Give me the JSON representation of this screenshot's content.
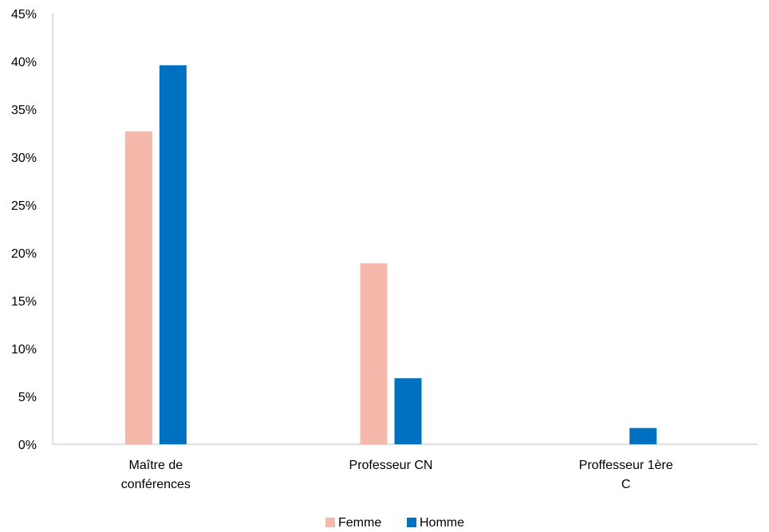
{
  "chart_data": {
    "type": "bar",
    "categories": [
      [
        "Maître de",
        "conférences"
      ],
      [
        "Professeur CN"
      ],
      [
        "Proffesseur 1ère",
        "C"
      ]
    ],
    "series": [
      {
        "name": "Femme",
        "color": "#F4B9AA",
        "values": [
          0.327,
          0.189,
          0
        ]
      },
      {
        "name": "Homme",
        "color": "#0070C0",
        "values": [
          0.396,
          0.069,
          0.017
        ]
      }
    ],
    "ylim": [
      0,
      0.45
    ],
    "yticks": [
      0,
      0.05,
      0.1,
      0.15,
      0.2,
      0.25,
      0.3,
      0.35,
      0.4,
      0.45
    ],
    "ytick_labels": [
      "0%",
      "5%",
      "10%",
      "15%",
      "20%",
      "25%",
      "30%",
      "35%",
      "40%",
      "45%"
    ],
    "grid": false,
    "legend_position": "bottom-center"
  }
}
